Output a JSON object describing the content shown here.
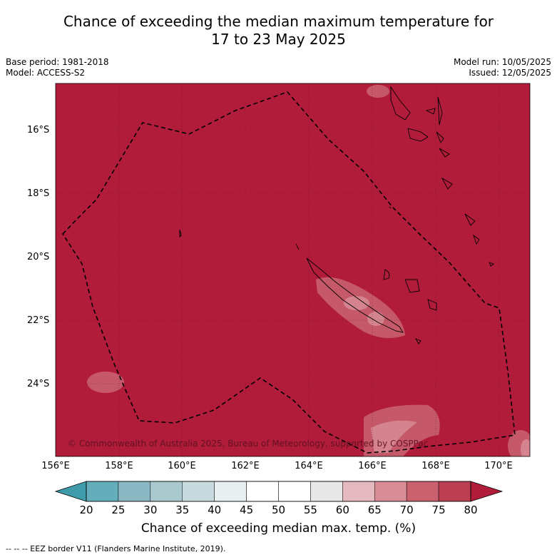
{
  "header": {
    "title_line1": "Chance of exceeding the median maximum temperature for",
    "title_line2": "17 to 23 May 2025",
    "base_period": "Base period: 1981-2018",
    "model": "Model: ACCESS-S2",
    "model_run": "Model run: 10/05/2025",
    "issued": "Issued: 12/05/2025"
  },
  "map": {
    "lat_labels": [
      "16°S",
      "18°S",
      "20°S",
      "22°S",
      "24°S"
    ],
    "lon_labels": [
      "156°E",
      "158°E",
      "160°E",
      "162°E",
      "164°E",
      "166°E",
      "168°E",
      "170°E"
    ],
    "background_color": "#b11c3a",
    "copyright": "© Commonwealth of Australia 2025, Bureau of Meteorology, supported by COSPPac"
  },
  "colorbar": {
    "ticks": [
      "20",
      "25",
      "30",
      "35",
      "40",
      "45",
      "50",
      "55",
      "60",
      "65",
      "70",
      "75",
      "80"
    ],
    "colors": [
      "#64aebb",
      "#8bb8c3",
      "#a9c9ce",
      "#c8dadd",
      "#e8eff0",
      "#ffffff",
      "#ffffff",
      "#e8e8e8",
      "#e4b9c0",
      "#d78c96",
      "#c9616f",
      "#bb3f50"
    ],
    "low_color": "#3f9aaa",
    "high_color": "#b11c3a",
    "title": "Chance of exceeding median max. temp. (%)"
  },
  "footer": {
    "legend": "--  --  -- EEZ border V11 (Flanders Marine Institute, 2019)."
  }
}
